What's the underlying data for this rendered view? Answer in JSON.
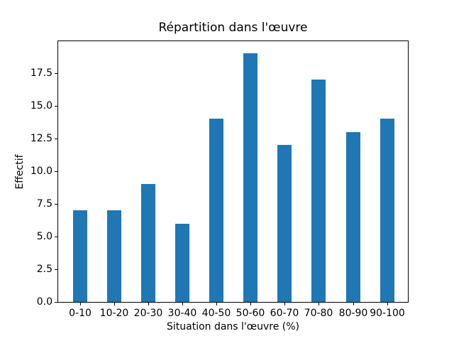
{
  "chart_data": {
    "type": "bar",
    "title": "Répartition dans l'œuvre",
    "xlabel": "Situation dans l'œuvre (%)",
    "ylabel": "Effectif",
    "categories": [
      "0-10",
      "10-20",
      "20-30",
      "30-40",
      "40-50",
      "50-60",
      "60-70",
      "70-80",
      "80-90",
      "90-100"
    ],
    "values": [
      7,
      7,
      9,
      6,
      14,
      19,
      12,
      17,
      13,
      14
    ],
    "ylim": [
      0,
      19.95
    ],
    "ytick_labels": [
      "0.0",
      "2.5",
      "5.0",
      "7.5",
      "10.0",
      "12.5",
      "15.0",
      "17.5"
    ],
    "ytick_values": [
      0,
      2.5,
      5,
      7.5,
      10,
      12.5,
      15,
      17.5
    ],
    "bar_color": "#1f77b4",
    "grid": false,
    "legend_position": "none"
  }
}
